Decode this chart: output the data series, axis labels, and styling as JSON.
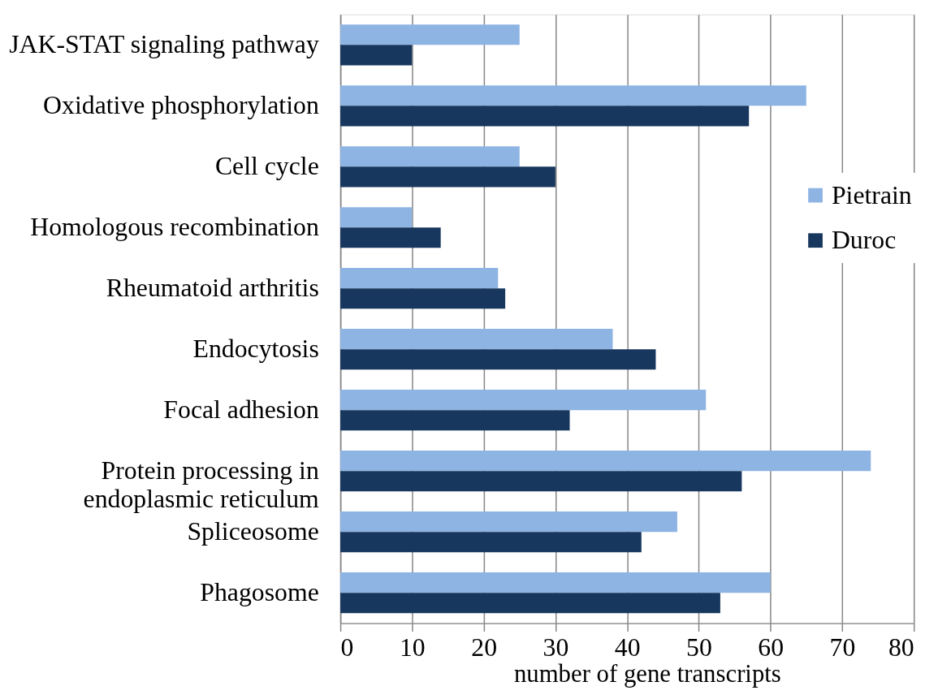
{
  "chart_data": {
    "type": "bar",
    "orientation": "horizontal",
    "xlabel": "number of gene transcripts",
    "categories": [
      "JAK-STAT signaling pathway",
      "Oxidative phosphorylation",
      "Cell cycle",
      "Homologous recombination",
      "Rheumatoid arthritis",
      "Endocytosis",
      "Focal adhesion",
      "Protein processing in\nendoplasmic reticulum",
      "Spliceosome",
      "Phagosome"
    ],
    "series": [
      {
        "name": "Pietrain",
        "color": "#8eb4e3",
        "values": [
          25,
          65,
          25,
          10,
          22,
          38,
          51,
          74,
          47,
          60
        ]
      },
      {
        "name": "Duroc",
        "color": "#17375e",
        "values": [
          10,
          57,
          30,
          14,
          23,
          44,
          32,
          56,
          42,
          53
        ]
      }
    ],
    "xlim": [
      0,
      80
    ],
    "xticks": [
      0,
      10,
      20,
      30,
      40,
      50,
      60,
      70,
      80
    ],
    "grid": "x",
    "legend": "right"
  }
}
